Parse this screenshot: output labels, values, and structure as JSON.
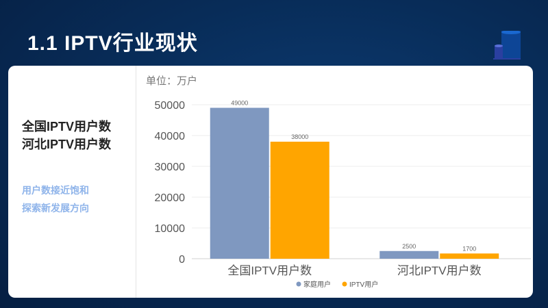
{
  "title": "1.1  IPTV行业现状",
  "left_panel": {
    "line1": "全国IPTV用户数",
    "line2": "河北IPTV用户数",
    "note1": "用户数接近饱和",
    "note2": "探索新发展方向"
  },
  "unit_label": "单位：万户",
  "colors": {
    "series1": "#7f98c0",
    "series2": "#ffa500",
    "background": "#082c58"
  },
  "chart_data": {
    "type": "bar",
    "categories": [
      "全国IPTV用户数",
      "河北IPTV用户数"
    ],
    "series": [
      {
        "name": "家庭用户",
        "values": [
          49000,
          2500
        ]
      },
      {
        "name": "IPTV用户",
        "values": [
          38000,
          1700
        ]
      }
    ],
    "ylim": [
      0,
      50000
    ],
    "yticks": [
      0,
      10000,
      20000,
      30000,
      40000,
      50000
    ],
    "ylabel": "单位：万户",
    "grid": true,
    "legend": "bottom"
  }
}
